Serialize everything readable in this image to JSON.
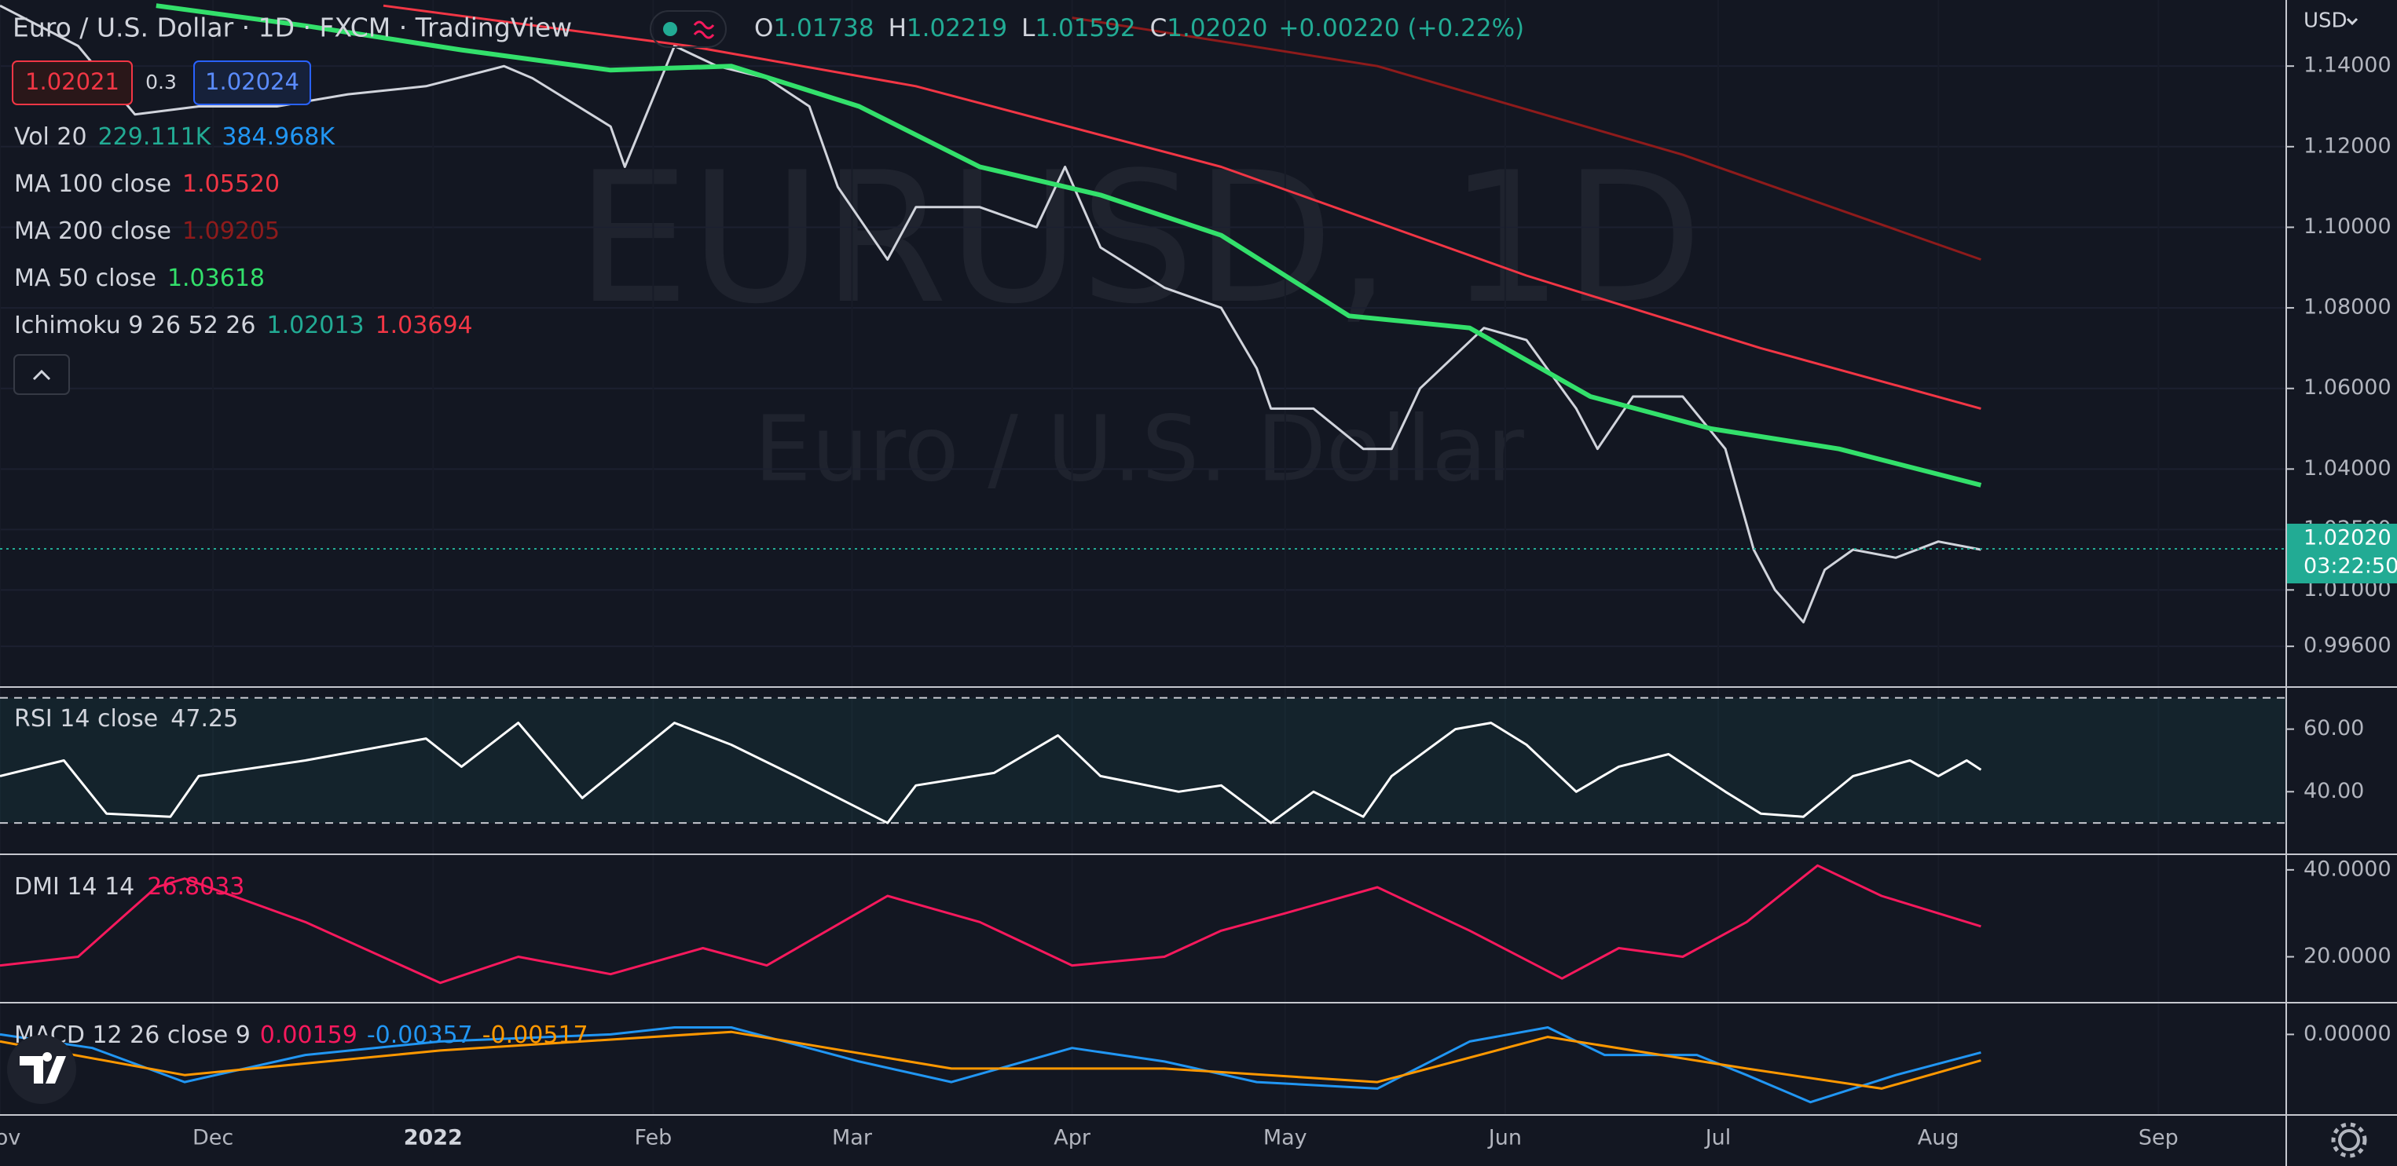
{
  "header": {
    "title": "Euro / U.S. Dollar · 1D · FXCM · TradingView",
    "ohlc": [
      {
        "key": "O",
        "value": "1.01738"
      },
      {
        "key": "H",
        "value": "1.02219"
      },
      {
        "key": "L",
        "value": "1.01592"
      },
      {
        "key": "C",
        "value": "1.02020"
      }
    ],
    "change": "+0.00220 (+0.22%)",
    "currency": "USD"
  },
  "buttons": {
    "sell": "1.02021",
    "spread": "0.3",
    "buy": "1.02024"
  },
  "watermark": {
    "symbol": "EURUSD, 1D",
    "name": "Euro / U.S. Dollar"
  },
  "legends": [
    {
      "name": "Vol 20",
      "values": [
        "229.111K",
        "384.968K"
      ],
      "colors": [
        "#22ab94",
        "#2196f3"
      ]
    },
    {
      "name": "MA 100 close",
      "values": [
        "1.05520"
      ],
      "colors": [
        "#f23645"
      ]
    },
    {
      "name": "MA 200 close",
      "values": [
        "1.09205"
      ],
      "colors": [
        "#8e1b1b"
      ]
    },
    {
      "name": "MA 50 close",
      "values": [
        "1.03618"
      ],
      "colors": [
        "#33e06b"
      ]
    },
    {
      "name": "Ichimoku 9 26 52 26",
      "values": [
        "1.02013",
        "1.03694"
      ],
      "colors": [
        "#22ab94",
        "#f23645"
      ]
    }
  ],
  "chart_data": [
    {
      "type": "line",
      "xlim": [
        0,
        322
      ],
      "xticks": [
        {
          "value": 0,
          "label": "Nov"
        },
        {
          "value": 30,
          "label": "Dec"
        },
        {
          "value": 61,
          "label": "2022"
        },
        {
          "value": 92,
          "label": "Feb"
        },
        {
          "value": 120,
          "label": "Mar"
        },
        {
          "value": 151,
          "label": "Apr"
        },
        {
          "value": 181,
          "label": "May"
        },
        {
          "value": 212,
          "label": "Jun"
        },
        {
          "value": 242,
          "label": "Jul"
        },
        {
          "value": 273,
          "label": "Aug"
        },
        {
          "value": 304,
          "label": "Sep"
        }
      ],
      "ylim": [
        0.9859,
        1.1564
      ],
      "yticks": [
        {
          "value": 1.14,
          "label": "1.14000"
        },
        {
          "value": 1.12,
          "label": "1.12000"
        },
        {
          "value": 1.1,
          "label": "1.10000"
        },
        {
          "value": 1.08,
          "label": "1.08000"
        },
        {
          "value": 1.06,
          "label": "1.06000"
        },
        {
          "value": 1.04,
          "label": "1.04000"
        },
        {
          "value": 1.025,
          "label": "1.02500"
        },
        {
          "value": 1.01,
          "label": "1.01000"
        },
        {
          "value": 0.996,
          "label": "0.99600"
        }
      ],
      "grid": true,
      "last_price": {
        "value": 1.0202,
        "label": "1.02020",
        "countdown": "03:22:50",
        "color": "#22ab94"
      },
      "series": [
        {
          "name": "EURUSD",
          "color": "#d1d4dc",
          "x": [
            0,
            11,
            19,
            28,
            39,
            49,
            60,
            71,
            75,
            86,
            88,
            95,
            101,
            108,
            114,
            118,
            125,
            129,
            138,
            146,
            150,
            155,
            164,
            172,
            177,
            179,
            185,
            192,
            196,
            200,
            209,
            215,
            222,
            225,
            230,
            237,
            243,
            247,
            250,
            254,
            257,
            261,
            267,
            273,
            279
          ],
          "values": [
            1.155,
            1.145,
            1.128,
            1.13,
            1.13,
            1.133,
            1.135,
            1.14,
            1.137,
            1.125,
            1.115,
            1.145,
            1.14,
            1.137,
            1.13,
            1.11,
            1.092,
            1.105,
            1.105,
            1.1,
            1.115,
            1.095,
            1.085,
            1.08,
            1.065,
            1.055,
            1.055,
            1.045,
            1.045,
            1.06,
            1.075,
            1.072,
            1.055,
            1.045,
            1.058,
            1.058,
            1.045,
            1.02,
            1.01,
            1.002,
            1.015,
            1.02,
            1.018,
            1.022,
            1.02
          ]
        },
        {
          "name": "MA 50 close",
          "color": "#33e06b",
          "x": [
            22,
            43,
            65,
            86,
            103,
            121,
            138,
            155,
            172,
            190,
            207,
            224,
            241,
            259,
            279
          ],
          "values": [
            1.155,
            1.15,
            1.144,
            1.139,
            1.14,
            1.13,
            1.115,
            1.108,
            1.098,
            1.078,
            1.075,
            1.058,
            1.05,
            1.045,
            1.036
          ]
        },
        {
          "name": "MA 100 close",
          "color": "#f23645",
          "x": [
            54,
            97,
            129,
            172,
            215,
            248,
            279
          ],
          "values": [
            1.155,
            1.145,
            1.135,
            1.115,
            1.088,
            1.07,
            1.055
          ]
        },
        {
          "name": "MA 200 close",
          "color": "#8e1b1b",
          "x": [
            151,
            194,
            237,
            279
          ],
          "values": [
            1.152,
            1.14,
            1.118,
            1.092
          ]
        }
      ]
    },
    {
      "type": "line",
      "title": "RSI 14 close",
      "value_label": "47.25",
      "xlim": [
        0,
        322
      ],
      "ylim": [
        20.5,
        72.2
      ],
      "yticks": [
        {
          "value": 60,
          "label": "60.00"
        },
        {
          "value": 40,
          "label": "40.00"
        }
      ],
      "band_levels": [
        70,
        30
      ],
      "series": [
        {
          "name": "RSI",
          "color": "#ffffff",
          "x": [
            0,
            9,
            15,
            24,
            28,
            43,
            60,
            65,
            73,
            82,
            95,
            103,
            112,
            125,
            129,
            140,
            149,
            155,
            166,
            172,
            179,
            185,
            192,
            196,
            205,
            210,
            215,
            222,
            228,
            235,
            243,
            248,
            254,
            261,
            269,
            273,
            277,
            279
          ],
          "values": [
            45,
            50,
            33,
            32,
            45,
            50,
            57,
            48,
            62,
            38,
            62,
            55,
            45,
            30,
            42,
            46,
            58,
            45,
            40,
            42,
            30,
            40,
            32,
            45,
            60,
            62,
            55,
            40,
            48,
            52,
            40,
            33,
            32,
            45,
            50,
            45,
            50,
            47
          ]
        }
      ]
    },
    {
      "type": "line",
      "title": "DMI 14 14",
      "value_label": "26.8033",
      "title_color": "#f7195d",
      "xlim": [
        0,
        322
      ],
      "ylim": [
        9.8,
        42.5
      ],
      "yticks": [
        {
          "value": 40,
          "label": "40.0000"
        },
        {
          "value": 20,
          "label": "20.0000"
        }
      ],
      "series": [
        {
          "name": "ADX",
          "color": "#f7195d",
          "x": [
            0,
            11,
            22,
            26,
            43,
            62,
            73,
            86,
            99,
            108,
            125,
            138,
            151,
            164,
            172,
            181,
            194,
            207,
            220,
            228,
            237,
            246,
            256,
            265,
            279
          ],
          "values": [
            18,
            20,
            36,
            38,
            28,
            14,
            20,
            16,
            22,
            18,
            34,
            28,
            18,
            20,
            26,
            30,
            36,
            26,
            15,
            22,
            20,
            28,
            41,
            34,
            27
          ]
        }
      ]
    },
    {
      "type": "line",
      "title": "MACD 12 26 close 9",
      "value_labels": [
        "0.00159",
        "-0.00357",
        "-0.00517"
      ],
      "value_colors": [
        "#f7195d",
        "#2196f3",
        "#ff9800"
      ],
      "xlim": [
        0,
        322
      ],
      "ylim": [
        -0.0159,
        0.0057
      ],
      "yticks": [
        {
          "value": 0,
          "label": "0.00000"
        }
      ],
      "series": [
        {
          "name": "MACD",
          "color": "#2196f3",
          "x": [
            0,
            13,
            26,
            43,
            62,
            86,
            95,
            103,
            121,
            134,
            151,
            164,
            177,
            194,
            207,
            218,
            226,
            239,
            246,
            255,
            267,
            279
          ],
          "values": [
            0,
            -0.0027,
            -0.0095,
            -0.0041,
            -0.0014,
            0,
            0.0014,
            0.0014,
            -0.0054,
            -0.0095,
            -0.0027,
            -0.0054,
            -0.0095,
            -0.0108,
            -0.0014,
            0.0014,
            -0.0041,
            -0.0041,
            -0.0081,
            -0.0135,
            -0.0081,
            -0.0036
          ]
        },
        {
          "name": "Signal",
          "color": "#ff9800",
          "x": [
            0,
            26,
            62,
            103,
            134,
            164,
            194,
            218,
            246,
            265,
            279
          ],
          "values": [
            -0.0014,
            -0.0081,
            -0.0032,
            0.0005,
            -0.0068,
            -0.0068,
            -0.0095,
            -0.0005,
            -0.0068,
            -0.0108,
            -0.0052
          ]
        }
      ]
    }
  ]
}
